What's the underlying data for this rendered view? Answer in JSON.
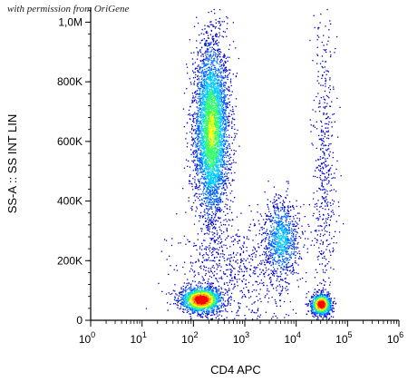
{
  "watermark": "with permission from OriGene",
  "chart_data": {
    "type": "scatter",
    "subtype": "flow-cytometry-density-dot-plot",
    "xlabel": "CD4 APC",
    "ylabel": "SS-A :: SS INT LIN",
    "x_scale": "log",
    "xlim": [
      1,
      1000000
    ],
    "ylim": [
      0,
      1050000
    ],
    "x_ticks": [
      {
        "value": 1,
        "base": "10",
        "exp": "0"
      },
      {
        "value": 10,
        "base": "10",
        "exp": "1"
      },
      {
        "value": 100,
        "base": "10",
        "exp": "2"
      },
      {
        "value": 1000,
        "base": "10",
        "exp": "3"
      },
      {
        "value": 10000,
        "base": "10",
        "exp": "4"
      },
      {
        "value": 100000,
        "base": "10",
        "exp": "5"
      },
      {
        "value": 1000000,
        "base": "10",
        "exp": "6"
      }
    ],
    "y_ticks": [
      {
        "value": 0,
        "label": "0"
      },
      {
        "value": 200000,
        "label": "200K"
      },
      {
        "value": 400000,
        "label": "400K"
      },
      {
        "value": 600000,
        "label": "600K"
      },
      {
        "value": 800000,
        "label": "800K"
      },
      {
        "value": 1000000,
        "label": "1,0M"
      }
    ],
    "grid": false,
    "color_scale": [
      "#0000cc",
      "#0066ff",
      "#00ccff",
      "#33ff66",
      "#ffff00",
      "#ff9900",
      "#ff0000"
    ],
    "populations": [
      {
        "x_center": 220,
        "x_log_spread": 0.17,
        "y_center": 640000,
        "y_spread": 150000,
        "count": 4200,
        "peak": 0.55
      },
      {
        "x_center": 140,
        "x_log_spread": 0.2,
        "y_center": 70000,
        "y_spread": 22000,
        "count": 1500,
        "peak": 1.0
      },
      {
        "x_center": 5000,
        "x_log_spread": 0.17,
        "y_center": 270000,
        "y_spread": 70000,
        "count": 900,
        "peak": 0.3
      },
      {
        "x_center": 30000,
        "x_log_spread": 0.1,
        "y_center": 55000,
        "y_spread": 18000,
        "count": 900,
        "peak": 1.0
      },
      {
        "x_center": 35000,
        "x_log_spread": 0.12,
        "y_center": 500000,
        "y_spread": 260000,
        "count": 500,
        "peak": 0.05
      },
      {
        "x_center": 600,
        "x_log_spread": 0.6,
        "y_center": 160000,
        "y_spread": 100000,
        "count": 700,
        "peak": 0.05
      }
    ]
  }
}
